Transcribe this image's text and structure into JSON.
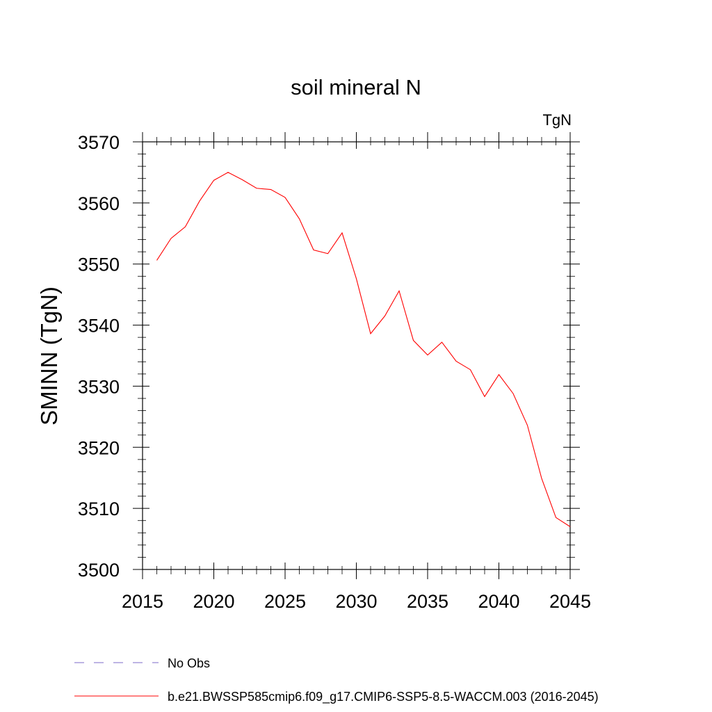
{
  "chart_data": {
    "type": "line",
    "title": "soil mineral N",
    "units_label": "TgN",
    "ylabel": "SMINN  (TgN)",
    "xlabel": "",
    "xlim": [
      2015,
      2045
    ],
    "ylim": [
      3500,
      3570
    ],
    "x_ticks": [
      2015,
      2020,
      2025,
      2030,
      2035,
      2040,
      2045
    ],
    "y_ticks": [
      3500,
      3510,
      3520,
      3530,
      3540,
      3550,
      3560,
      3570
    ],
    "x_tick_labels": [
      "2015",
      "2020",
      "2025",
      "2030",
      "2035",
      "2040",
      "2045"
    ],
    "y_tick_labels": [
      "3500",
      "3510",
      "3520",
      "3530",
      "3540",
      "3550",
      "3560",
      "3570"
    ],
    "grid": false,
    "legend_position": "bottom",
    "series": [
      {
        "name": "b.e21.BWSSP585cmip6.f09_g17.CMIP6-SSP5-8.5-WACCM.003 (2016-2045)",
        "color": "#ff0000",
        "style": "solid",
        "x": [
          2016,
          2017,
          2018,
          2019,
          2020,
          2021,
          2022,
          2023,
          2024,
          2025,
          2026,
          2027,
          2028,
          2029,
          2030,
          2031,
          2032,
          2033,
          2034,
          2035,
          2036,
          2037,
          2038,
          2039,
          2040,
          2041,
          2042,
          2043,
          2044,
          2045
        ],
        "y": [
          3550.6,
          3554.2,
          3556.1,
          3560.3,
          3563.7,
          3565.0,
          3563.8,
          3562.4,
          3562.2,
          3560.9,
          3557.4,
          3552.3,
          3551.7,
          3555.1,
          3547.6,
          3538.6,
          3541.5,
          3545.6,
          3537.5,
          3535.1,
          3537.2,
          3534.1,
          3532.7,
          3528.3,
          3531.9,
          3528.8,
          3523.6,
          3514.9,
          3508.5,
          3507.0
        ]
      }
    ]
  },
  "legend": {
    "entries": [
      {
        "label": "No Obs",
        "color": "#7b68c8",
        "style": "dashed"
      },
      {
        "label": "b.e21.BWSSP585cmip6.f09_g17.CMIP6-SSP5-8.5-WACCM.003 (2016-2045)",
        "color": "#ff0000",
        "style": "solid"
      }
    ]
  }
}
